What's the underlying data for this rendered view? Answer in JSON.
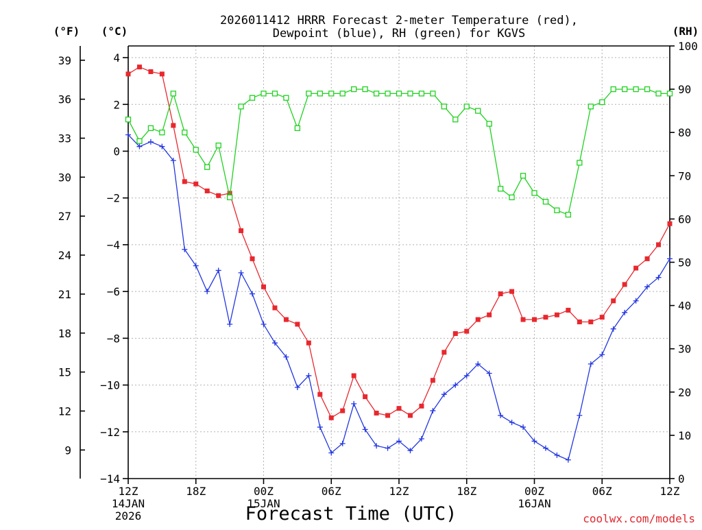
{
  "chart_data": {
    "type": "line",
    "title": "2026011412 HRRR Forecast 2-meter Temperature (red), Dewpoint (blue), RH (green) for KGVS",
    "title_lines": [
      "2026011412 HRRR Forecast 2-meter Temperature (red),",
      "Dewpoint (blue), RH (green) for KGVS"
    ],
    "xlabel": "Forecast Time (UTC)",
    "credit": "coolwx.com/models",
    "y_units": {
      "fahrenheit": "(°F)",
      "celsius": "(°C)",
      "rh": "(RH)"
    },
    "x_ticks": [
      "12Z",
      "18Z",
      "00Z",
      "06Z",
      "12Z",
      "18Z",
      "00Z",
      "06Z",
      "12Z"
    ],
    "x_date_labels": [
      {
        "tick": 0,
        "lines": [
          "14JAN",
          "2026"
        ]
      },
      {
        "tick": 2,
        "lines": [
          "15JAN"
        ]
      },
      {
        "tick": 6,
        "lines": [
          "16JAN"
        ]
      }
    ],
    "x_range_hours": [
      0,
      48
    ],
    "celsius_ticks": [
      "4",
      "2",
      "0",
      "−2",
      "−4",
      "−6",
      "−8",
      "−10",
      "−12",
      "−14"
    ],
    "fahrenheit_ticks": [
      "39",
      "36",
      "33",
      "30",
      "27",
      "24",
      "21",
      "18",
      "15",
      "12",
      "9"
    ],
    "rh_ticks": [
      "100",
      "90",
      "80",
      "70",
      "60",
      "50",
      "40",
      "30",
      "20",
      "10",
      "0"
    ],
    "ylim_celsius": [
      -14,
      4.5
    ],
    "ylim_rh": [
      0,
      100
    ],
    "grid": true,
    "series": [
      {
        "name": "Temperature",
        "axis": "celsius",
        "color": "#e8282e",
        "marker": "filled-square",
        "x": [
          0,
          1,
          2,
          3,
          4,
          5,
          6,
          7,
          8,
          9,
          10,
          11,
          12,
          13,
          14,
          15,
          16,
          17,
          18,
          19,
          20,
          21,
          22,
          23,
          24,
          25,
          26,
          27,
          28,
          29,
          30,
          31,
          32,
          33,
          34,
          35,
          36,
          37,
          38,
          39,
          40,
          41,
          42,
          43,
          44,
          45,
          46,
          47,
          48
        ],
        "values": [
          3.3,
          3.6,
          3.4,
          3.3,
          1.1,
          -1.3,
          -1.4,
          -1.7,
          -1.9,
          -1.8,
          -3.4,
          -4.6,
          -5.8,
          -6.7,
          -7.2,
          -7.4,
          -8.2,
          -10.4,
          -11.4,
          -11.1,
          -9.6,
          -10.5,
          -11.2,
          -11.3,
          -11.0,
          -11.3,
          -10.9,
          -9.8,
          -8.6,
          -7.8,
          -7.7,
          -7.2,
          -7.0,
          -6.1,
          -6.0,
          -7.2,
          -7.2,
          -7.1,
          -7.0,
          -6.8,
          -7.3,
          -7.3,
          -7.1,
          -6.4,
          -5.7,
          -5.0,
          -4.6,
          -4.0,
          -3.1
        ]
      },
      {
        "name": "Dewpoint",
        "axis": "celsius",
        "color": "#2236e0",
        "marker": "plus",
        "x": [
          0,
          1,
          2,
          3,
          4,
          5,
          6,
          7,
          8,
          9,
          10,
          11,
          12,
          13,
          14,
          15,
          16,
          17,
          18,
          19,
          20,
          21,
          22,
          23,
          24,
          25,
          26,
          27,
          28,
          29,
          30,
          31,
          32,
          33,
          34,
          35,
          36,
          37,
          38,
          39,
          40,
          41,
          42,
          43,
          44,
          45,
          46,
          47,
          48
        ],
        "values": [
          0.7,
          0.2,
          0.4,
          0.2,
          -0.4,
          -4.2,
          -4.9,
          -6.0,
          -5.1,
          -7.4,
          -5.2,
          -6.1,
          -7.4,
          -8.2,
          -8.8,
          -10.1,
          -9.6,
          -11.8,
          -12.9,
          -12.5,
          -10.8,
          -11.9,
          -12.6,
          -12.7,
          -12.4,
          -12.8,
          -12.3,
          -11.1,
          -10.4,
          -10.0,
          -9.6,
          -9.1,
          -9.5,
          -11.3,
          -11.6,
          -11.8,
          -12.4,
          -12.7,
          -13.0,
          -13.2,
          -11.3,
          -9.1,
          -8.7,
          -7.6,
          -6.9,
          -6.4,
          -5.8,
          -5.4,
          -4.6
        ]
      },
      {
        "name": "RH",
        "axis": "rh",
        "color": "#1ed21e",
        "marker": "open-square",
        "x": [
          0,
          1,
          2,
          3,
          4,
          5,
          6,
          7,
          8,
          9,
          10,
          11,
          12,
          13,
          14,
          15,
          16,
          17,
          18,
          19,
          20,
          21,
          22,
          23,
          24,
          25,
          26,
          27,
          28,
          29,
          30,
          31,
          32,
          33,
          34,
          35,
          36,
          37,
          38,
          39,
          40,
          41,
          42,
          43,
          44,
          45,
          46,
          47,
          48
        ],
        "values": [
          83,
          78,
          81,
          80,
          89,
          80,
          76,
          72,
          77,
          65,
          86,
          88,
          89,
          89,
          88,
          81,
          89,
          89,
          89,
          89,
          90,
          90,
          89,
          89,
          89,
          89,
          89,
          89,
          86,
          83,
          86,
          85,
          82,
          67,
          65,
          70,
          66,
          64,
          62,
          61,
          73,
          86,
          87,
          90,
          90,
          90,
          90,
          89,
          89
        ]
      }
    ]
  }
}
